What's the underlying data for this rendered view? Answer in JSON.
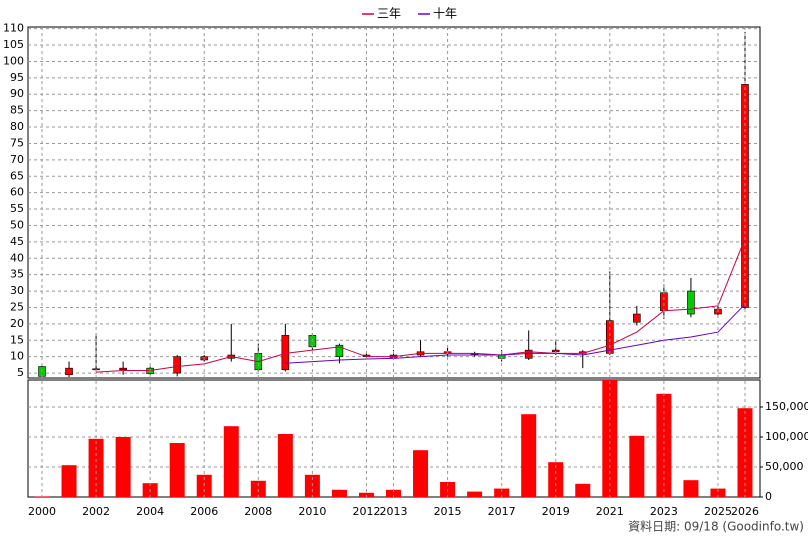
{
  "chart_data": [
    {
      "type": "candlestick",
      "open": [
        7,
        4.5,
        6,
        6,
        6.5,
        5,
        9,
        9.5,
        11,
        6,
        16.5,
        13.5,
        10,
        9.5,
        10.5,
        11,
        10.7,
        10.5,
        9.5,
        11.5,
        11,
        11,
        20.5,
        24,
        30,
        23,
        25
      ],
      "high": [
        7.5,
        8.5,
        17,
        8.5,
        7,
        10.5,
        10.5,
        20,
        14,
        20,
        17,
        14,
        11.5,
        12,
        15,
        13,
        11.5,
        12,
        18,
        15,
        12,
        36,
        25.5,
        32,
        34,
        26,
        109
      ],
      "low": [
        3.5,
        3.8,
        5.5,
        4.5,
        4.5,
        4,
        8.5,
        8.5,
        5.5,
        5.5,
        12,
        8,
        9,
        9,
        10,
        10,
        10,
        8.5,
        9,
        10.5,
        6.5,
        10.5,
        19.5,
        21.5,
        22,
        22,
        24
      ],
      "close": [
        4,
        6.5,
        6.3,
        6.5,
        4.8,
        10,
        10,
        10.5,
        6,
        16.5,
        13,
        10,
        10.5,
        10.5,
        11.5,
        11.5,
        11,
        9.5,
        12,
        12,
        11.5,
        21,
        23,
        29.5,
        23,
        24.5,
        93
      ],
      "up_color": "#ff0000",
      "down_color": "#00cc00",
      "series": [
        {
          "name": "三年",
          "color": "#cc0044",
          "values": [
            null,
            null,
            5.3,
            5.8,
            5.8,
            7,
            7.8,
            10,
            8.5,
            11,
            12,
            13,
            10,
            10,
            11,
            11,
            11,
            10.5,
            11.5,
            11,
            11,
            13.5,
            17.5,
            24,
            24.5,
            25.5,
            46
          ]
        },
        {
          "name": "十年",
          "color": "#6600cc",
          "values": [
            null,
            null,
            null,
            null,
            null,
            null,
            null,
            null,
            null,
            8,
            8.5,
            9,
            9.3,
            9.5,
            10,
            10.5,
            10.5,
            10.5,
            11,
            11,
            10.5,
            12,
            13.5,
            15,
            16,
            17.5,
            26
          ]
        }
      ],
      "ylim": [
        3.5,
        110.5
      ],
      "yticks": [
        5,
        10,
        15,
        20,
        25,
        30,
        35,
        40,
        45,
        50,
        55,
        60,
        65,
        70,
        75,
        80,
        85,
        90,
        95,
        100,
        105,
        110
      ],
      "grid": true
    },
    {
      "type": "bar",
      "categories": [
        "2000",
        null,
        "2002",
        null,
        "2004",
        null,
        "2006",
        null,
        "2008",
        null,
        "2010",
        null,
        "2012",
        "2013",
        null,
        "2015",
        null,
        "2017",
        null,
        "2019",
        null,
        "2021",
        null,
        "2023",
        null,
        "2025",
        "2026"
      ],
      "values": [
        1000,
        53000,
        97000,
        100000,
        23000,
        90000,
        37000,
        118000,
        27000,
        105000,
        37000,
        12000,
        7000,
        12000,
        78000,
        25000,
        9000,
        14000,
        138000,
        58000,
        22000,
        195000,
        102000,
        172000,
        28000,
        14000,
        148000
      ],
      "color": "#ff0000",
      "ylim": [
        0,
        195000
      ],
      "yticks": [
        0,
        {
          "value": 50000,
          "label": "50,000"
        },
        {
          "value": 100000,
          "label": "100,000"
        },
        {
          "value": 150000,
          "label": "150,000"
        }
      ],
      "grid": true,
      "annotation": "資料日期: 09/18  (Goodinfo.tw)"
    }
  ]
}
